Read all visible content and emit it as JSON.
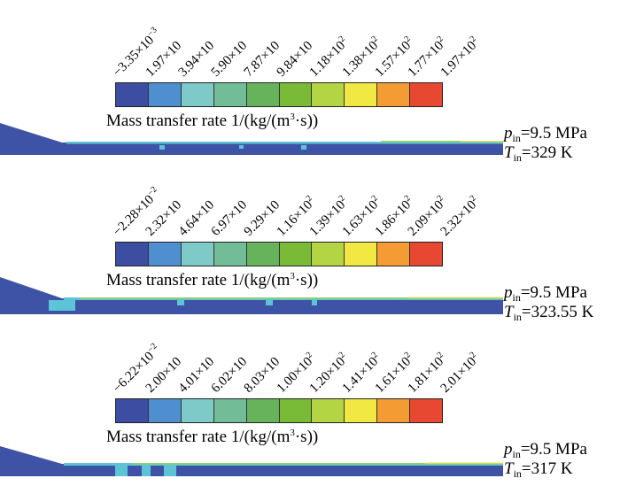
{
  "colorbar_colors": [
    "#3d4da2",
    "#4f8fd0",
    "#7ecac8",
    "#72bd98",
    "#66b35b",
    "#79bb36",
    "#b3d544",
    "#f1e843",
    "#f49b34",
    "#e64831"
  ],
  "channel_colors": {
    "base": "#3f53a6",
    "cyan": "#5cc4d6",
    "green": "#8fd06c",
    "yellow": "#e8e55a"
  },
  "panels": [
    {
      "ticks": [
        {
          "mant": "−3.35×10",
          "exp": "−3"
        },
        {
          "mant": "1.97×10",
          "exp": ""
        },
        {
          "mant": "3.94×10",
          "exp": ""
        },
        {
          "mant": "5.90×10",
          "exp": ""
        },
        {
          "mant": "7.87×10",
          "exp": ""
        },
        {
          "mant": "9.84×10",
          "exp": ""
        },
        {
          "mant": "1.18×10",
          "exp": "2"
        },
        {
          "mant": "1.38×10",
          "exp": "2"
        },
        {
          "mant": "1.57×10",
          "exp": "2"
        },
        {
          "mant": "1.77×10",
          "exp": "2"
        },
        {
          "mant": "1.97×10",
          "exp": "2"
        }
      ],
      "label_a": "Mass transfer rate 1/(kg/(m",
      "label_sup": "3",
      "label_b": "·s))",
      "p_sym": "p",
      "p_sub": "in",
      "p_val": "=9.5 MPa",
      "t_sym": "T",
      "t_sub": "in",
      "t_val": "=329 K"
    },
    {
      "ticks": [
        {
          "mant": "−2.28×10",
          "exp": "−2"
        },
        {
          "mant": "2.32×10",
          "exp": ""
        },
        {
          "mant": "4.64×10",
          "exp": ""
        },
        {
          "mant": "6.97×10",
          "exp": ""
        },
        {
          "mant": "9.29×10",
          "exp": ""
        },
        {
          "mant": "1.16×10",
          "exp": "2"
        },
        {
          "mant": "1.39×10",
          "exp": "2"
        },
        {
          "mant": "1.63×10",
          "exp": "2"
        },
        {
          "mant": "1.86×10",
          "exp": "2"
        },
        {
          "mant": "2.09×10",
          "exp": "2"
        },
        {
          "mant": "2.32×10",
          "exp": "2"
        }
      ],
      "label_a": "Mass transfer rate 1/(kg/(m",
      "label_sup": "3",
      "label_b": "·s))",
      "p_sym": "p",
      "p_sub": "in",
      "p_val": "=9.5 MPa",
      "t_sym": "T",
      "t_sub": "in",
      "t_val": "=323.55 K"
    },
    {
      "ticks": [
        {
          "mant": "−6.22×10",
          "exp": "−2"
        },
        {
          "mant": "2.00×10",
          "exp": ""
        },
        {
          "mant": "4.01×10",
          "exp": ""
        },
        {
          "mant": "6.02×10",
          "exp": ""
        },
        {
          "mant": "8.03×10",
          "exp": ""
        },
        {
          "mant": "1.00×10",
          "exp": "2"
        },
        {
          "mant": "1.20×10",
          "exp": "2"
        },
        {
          "mant": "1.41×10",
          "exp": "2"
        },
        {
          "mant": "1.61×10",
          "exp": "2"
        },
        {
          "mant": "1.81×10",
          "exp": "2"
        },
        {
          "mant": "2.01×10",
          "exp": "2"
        }
      ],
      "label_a": "Mass transfer rate 1/(kg/(m",
      "label_sup": "3",
      "label_b": "·s))",
      "p_sym": "p",
      "p_sub": "in",
      "p_val": "=9.5 MPa",
      "t_sym": "T",
      "t_sub": "in",
      "t_val": "=317 K"
    }
  ]
}
